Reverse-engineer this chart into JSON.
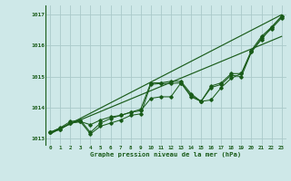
{
  "xlabel": "Graphe pression niveau de la mer (hPa)",
  "background_color": "#cee8e8",
  "grid_color": "#aacaca",
  "line_color": "#1a5c1a",
  "xlim": [
    -0.5,
    23.5
  ],
  "ylim": [
    1012.8,
    1017.3
  ],
  "yticks": [
    1013,
    1014,
    1015,
    1016,
    1017
  ],
  "xtick_labels": [
    "0",
    "1",
    "2",
    "3",
    "4",
    "5",
    "6",
    "7",
    "8",
    "9",
    "10",
    "11",
    "12",
    "13",
    "14",
    "15",
    "16",
    "17",
    "18",
    "19",
    "20",
    "21",
    "22",
    "23"
  ],
  "series1_x": [
    0,
    1,
    2,
    3,
    4,
    5,
    6,
    7,
    8,
    9,
    10,
    11,
    12,
    13,
    14,
    15,
    16,
    17,
    18,
    19,
    20,
    21,
    22,
    23
  ],
  "series1_y": [
    1013.2,
    1013.35,
    1013.55,
    1013.6,
    1013.2,
    1013.5,
    1013.65,
    1013.75,
    1013.85,
    1013.95,
    1014.8,
    1014.8,
    1014.85,
    1014.85,
    1014.45,
    1014.2,
    1014.7,
    1014.8,
    1015.1,
    1015.1,
    1015.85,
    1016.3,
    1016.6,
    1016.95
  ],
  "series2_x": [
    0,
    1,
    2,
    3,
    4,
    5,
    6,
    7,
    8,
    9,
    10,
    11,
    12,
    13,
    14,
    15,
    16,
    17,
    18,
    19,
    20,
    21,
    22,
    23
  ],
  "series2_y": [
    1013.2,
    1013.3,
    1013.5,
    1013.55,
    1013.45,
    1013.6,
    1013.7,
    1013.75,
    1013.85,
    1013.9,
    1014.3,
    1014.35,
    1014.35,
    1014.8,
    1014.35,
    1014.2,
    1014.25,
    1014.65,
    1014.95,
    1015.1,
    1015.8,
    1016.2,
    1016.6,
    1016.95
  ],
  "series3_x": [
    0,
    1,
    2,
    3,
    4,
    5,
    6,
    7,
    8,
    9,
    10,
    11,
    12,
    13,
    14,
    15,
    16,
    17,
    18,
    19,
    20,
    21,
    22,
    23
  ],
  "series3_y": [
    1013.2,
    1013.3,
    1013.5,
    1013.55,
    1013.15,
    1013.4,
    1013.5,
    1013.6,
    1013.75,
    1013.8,
    1014.75,
    1014.78,
    1014.78,
    1014.8,
    1014.4,
    1014.2,
    1014.65,
    1014.75,
    1015.05,
    1015.0,
    1015.8,
    1016.25,
    1016.55,
    1016.9
  ],
  "trend1_x": [
    0,
    23
  ],
  "trend1_y": [
    1013.15,
    1017.0
  ],
  "trend2_x": [
    0,
    23
  ],
  "trend2_y": [
    1013.2,
    1016.3
  ]
}
